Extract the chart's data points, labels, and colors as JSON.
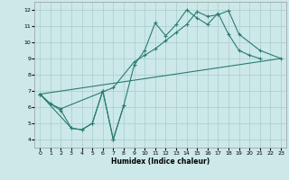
{
  "xlabel": "Humidex (Indice chaleur)",
  "background_color": "#cce8e8",
  "line_color": "#2a7d6e",
  "grid_color": "#aacccc",
  "xlim": [
    -0.5,
    23.5
  ],
  "ylim": [
    3.5,
    12.5
  ],
  "xticks": [
    0,
    1,
    2,
    3,
    4,
    5,
    6,
    7,
    8,
    9,
    10,
    11,
    12,
    13,
    14,
    15,
    16,
    17,
    18,
    19,
    20,
    21,
    22,
    23
  ],
  "yticks": [
    4,
    5,
    6,
    7,
    8,
    9,
    10,
    11,
    12
  ],
  "series1_x": [
    0,
    1,
    2,
    3,
    4,
    5,
    6,
    7,
    8,
    9,
    10,
    11,
    12,
    13,
    14,
    15,
    16,
    17,
    18,
    19,
    20,
    21
  ],
  "series1_y": [
    6.8,
    6.2,
    5.8,
    4.7,
    4.6,
    5.0,
    7.0,
    4.0,
    6.1,
    8.6,
    9.5,
    11.2,
    10.4,
    11.1,
    12.0,
    11.5,
    11.1,
    11.8,
    10.5,
    9.5,
    9.2,
    9.0
  ],
  "series2_x": [
    0,
    1,
    2,
    7,
    9,
    10,
    11,
    12,
    13,
    14,
    15,
    16,
    17,
    18,
    19,
    21,
    23
  ],
  "series2_y": [
    6.8,
    6.2,
    5.9,
    7.2,
    8.8,
    9.2,
    9.6,
    10.1,
    10.6,
    11.1,
    11.9,
    11.6,
    11.7,
    11.95,
    10.5,
    9.5,
    9.0
  ],
  "series3_x": [
    0,
    23
  ],
  "series3_y": [
    6.8,
    9.0
  ],
  "series4_x": [
    0,
    3,
    4,
    5,
    6,
    7,
    8
  ],
  "series4_y": [
    6.8,
    4.7,
    4.6,
    5.0,
    7.0,
    4.0,
    6.1
  ]
}
